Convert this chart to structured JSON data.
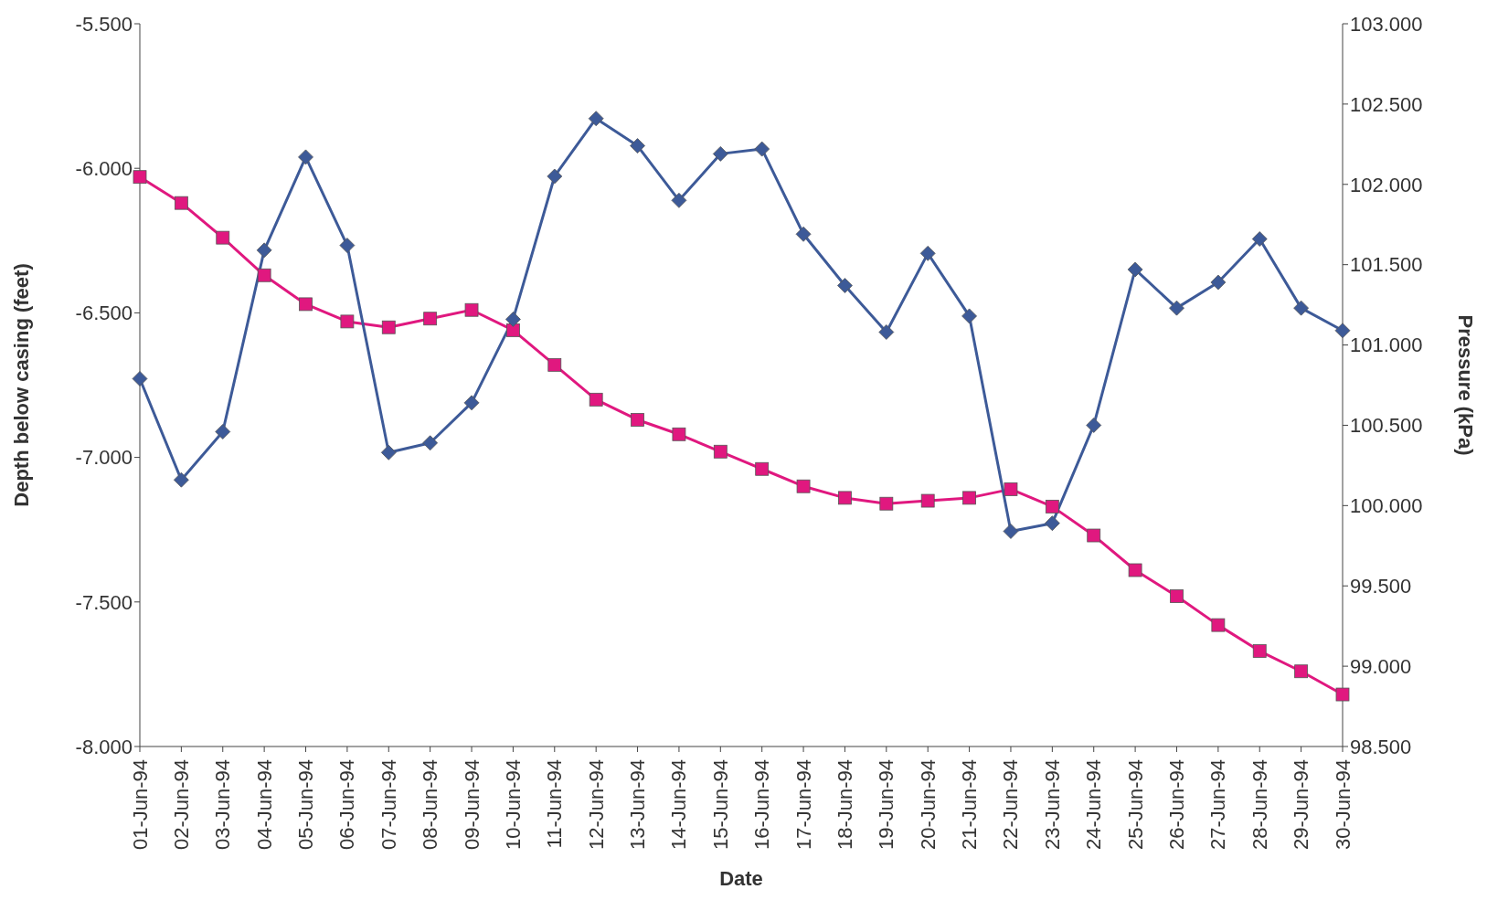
{
  "chart_data": {
    "type": "line",
    "xlabel": "Date",
    "ylabel": "Depth below casing (feet)",
    "y2label": "Pressure (kPa)",
    "categories": [
      "01-Jun-94",
      "02-Jun-94",
      "03-Jun-94",
      "04-Jun-94",
      "05-Jun-94",
      "06-Jun-94",
      "07-Jun-94",
      "08-Jun-94",
      "09-Jun-94",
      "10-Jun-94",
      "11-Jun-94",
      "12-Jun-94",
      "13-Jun-94",
      "14-Jun-94",
      "15-Jun-94",
      "16-Jun-94",
      "17-Jun-94",
      "18-Jun-94",
      "19-Jun-94",
      "20-Jun-94",
      "21-Jun-94",
      "22-Jun-94",
      "23-Jun-94",
      "24-Jun-94",
      "25-Jun-94",
      "26-Jun-94",
      "27-Jun-94",
      "28-Jun-94",
      "29-Jun-94",
      "30-Jun-94"
    ],
    "series": [
      {
        "color": "#e0187f",
        "marker": "square",
        "values": [
          -6.03,
          -6.12,
          -6.24,
          -6.37,
          -6.47,
          -6.53,
          -6.55,
          -6.52,
          -6.49,
          -6.56,
          -6.68,
          -6.8,
          -6.87,
          -6.92,
          -6.98,
          -7.04,
          -7.1,
          -7.14,
          -7.16,
          -7.15,
          -7.14,
          -7.11,
          -7.17,
          -7.27,
          -7.39,
          -7.48,
          -7.58,
          -7.67,
          -7.74,
          -7.82
        ]
      },
      {
        "color": "#3d5a98",
        "marker": "diamond",
        "axis": "y2",
        "values": [
          100.79,
          100.16,
          100.46,
          101.59,
          102.17,
          101.62,
          100.33,
          100.39,
          100.64,
          101.16,
          102.05,
          102.41,
          102.24,
          101.9,
          102.19,
          102.22,
          101.69,
          101.37,
          101.08,
          101.57,
          101.18,
          99.84,
          99.89,
          100.5,
          101.47,
          101.23,
          101.39,
          101.66,
          101.23,
          101.09
        ]
      }
    ],
    "ylim": [
      -8,
      -5.5
    ],
    "yticks": [
      {
        "value": -8,
        "label": "-8.000"
      },
      {
        "value": -7.5,
        "label": "-7.500"
      },
      {
        "value": -7,
        "label": "-7.000"
      },
      {
        "value": -6.5,
        "label": "-6.500"
      },
      {
        "value": -6,
        "label": "-6.000"
      },
      {
        "value": -5.5,
        "label": "-5.500"
      }
    ],
    "y2lim": [
      98.5,
      103
    ],
    "y2ticks": [
      {
        "value": 98.5,
        "label": "98.500"
      },
      {
        "value": 99,
        "label": "99.000"
      },
      {
        "value": 99.5,
        "label": "99.500"
      },
      {
        "value": 100,
        "label": "100.000"
      },
      {
        "value": 100.5,
        "label": "100.500"
      },
      {
        "value": 101,
        "label": "101.000"
      },
      {
        "value": 101.5,
        "label": "101.500"
      },
      {
        "value": 102,
        "label": "102.000"
      },
      {
        "value": 102.5,
        "label": "102.500"
      },
      {
        "value": 103,
        "label": "103.000"
      }
    ],
    "grid": false,
    "legend": false,
    "line_style": "solid"
  }
}
